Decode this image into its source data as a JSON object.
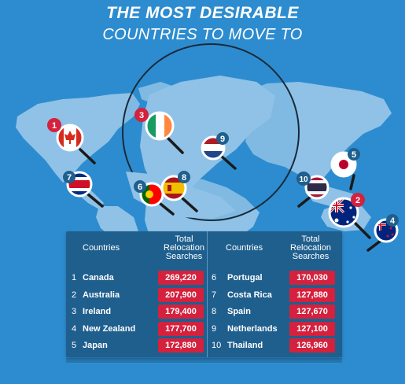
{
  "title_line1": "THE MOST DESIRABLE",
  "title_line2": "COUNTRIES TO MOVE TO",
  "table": {
    "header_countries": "Countries",
    "header_value_line1": "Total",
    "header_value_line2": "Relocation",
    "header_value_line3": "Searches",
    "left": [
      {
        "rank": "1",
        "country": "Canada",
        "value": "269,220"
      },
      {
        "rank": "2",
        "country": "Australia",
        "value": "207,900"
      },
      {
        "rank": "3",
        "country": "Ireland",
        "value": "179,400"
      },
      {
        "rank": "4",
        "country": "New Zealand",
        "value": "177,700"
      },
      {
        "rank": "5",
        "country": "Japan",
        "value": "172,880"
      }
    ],
    "right": [
      {
        "rank": "6",
        "country": "Portugal",
        "value": "170,030"
      },
      {
        "rank": "7",
        "country": "Costa Rica",
        "value": "127,880"
      },
      {
        "rank": "8",
        "country": "Spain",
        "value": "127,670"
      },
      {
        "rank": "9",
        "country": "Netherlands",
        "value": "127,100"
      },
      {
        "rank": "10",
        "country": "Thailand",
        "value": "126,960"
      }
    ]
  },
  "markers": [
    {
      "rank": "1",
      "flag": "canada-flag",
      "badge_color": "#d4213d"
    },
    {
      "rank": "2",
      "flag": "australia-flag",
      "badge_color": "#d4213d"
    },
    {
      "rank": "3",
      "flag": "ireland-flag",
      "badge_color": "#d4213d"
    },
    {
      "rank": "4",
      "flag": "new-zealand-flag",
      "badge_color": "#1f5f8e"
    },
    {
      "rank": "5",
      "flag": "japan-flag",
      "badge_color": "#1f5f8e"
    },
    {
      "rank": "6",
      "flag": "portugal-flag",
      "badge_color": "#1f5f8e"
    },
    {
      "rank": "7",
      "flag": "costa-rica-flag",
      "badge_color": "#1f5f8e"
    },
    {
      "rank": "8",
      "flag": "spain-flag",
      "badge_color": "#1f5f8e"
    },
    {
      "rank": "9",
      "flag": "netherlands-flag",
      "badge_color": "#1f5f8e"
    },
    {
      "rank": "10",
      "flag": "thailand-flag",
      "badge_color": "#1f5f8e"
    }
  ],
  "colors": {
    "background": "#2d8ccf",
    "land": "#8fc2e6",
    "panel": "#1f5f8e",
    "accent": "#d4213d"
  }
}
